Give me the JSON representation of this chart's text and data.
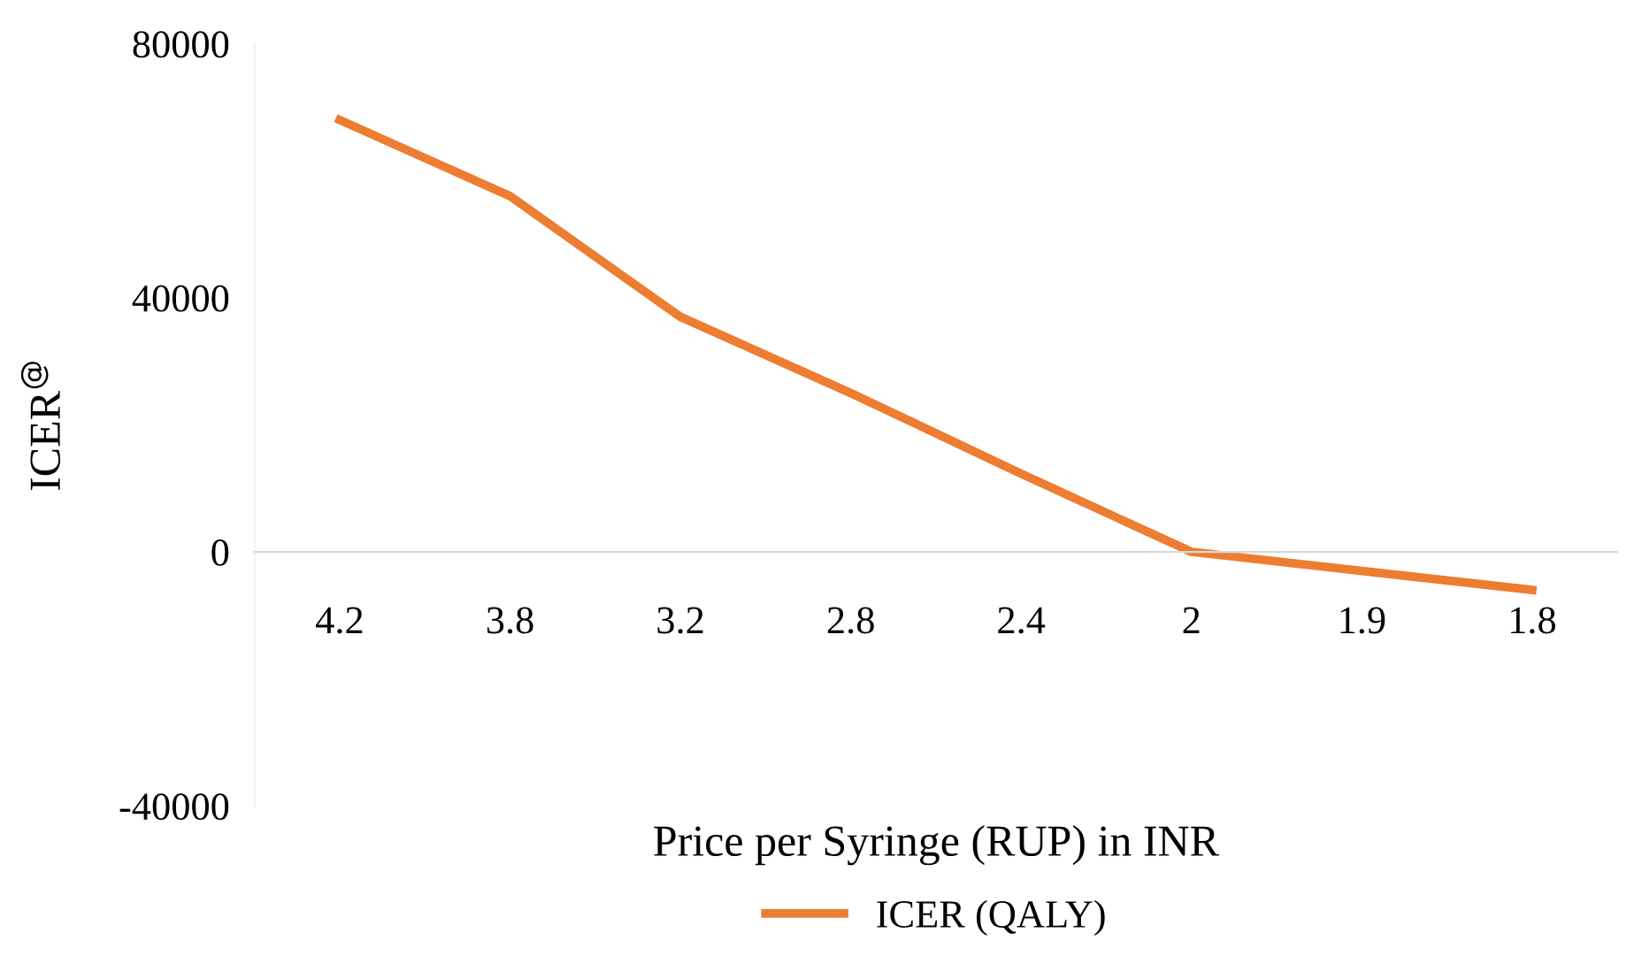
{
  "chart_data": {
    "type": "line",
    "xlabel": "Price per Syringe (RUP) in INR",
    "ylabel": "ICER$^{@}$",
    "categories": [
      "4.2",
      "3.8",
      "3.2",
      "2.8",
      "2.4",
      "2",
      "1.9",
      "1.8"
    ],
    "series": [
      {
        "name": "ICER (QALY)",
        "color": "#ed7d31",
        "values": [
          68000,
          56000,
          37000,
          25000,
          12300,
          0,
          -3000,
          -6000
        ]
      }
    ],
    "ylim": [
      -40000,
      80000
    ],
    "yticks": [
      -40000,
      0,
      40000,
      80000
    ],
    "grid": false,
    "legend": "bottom",
    "marker": "none",
    "line_style": "solid"
  }
}
